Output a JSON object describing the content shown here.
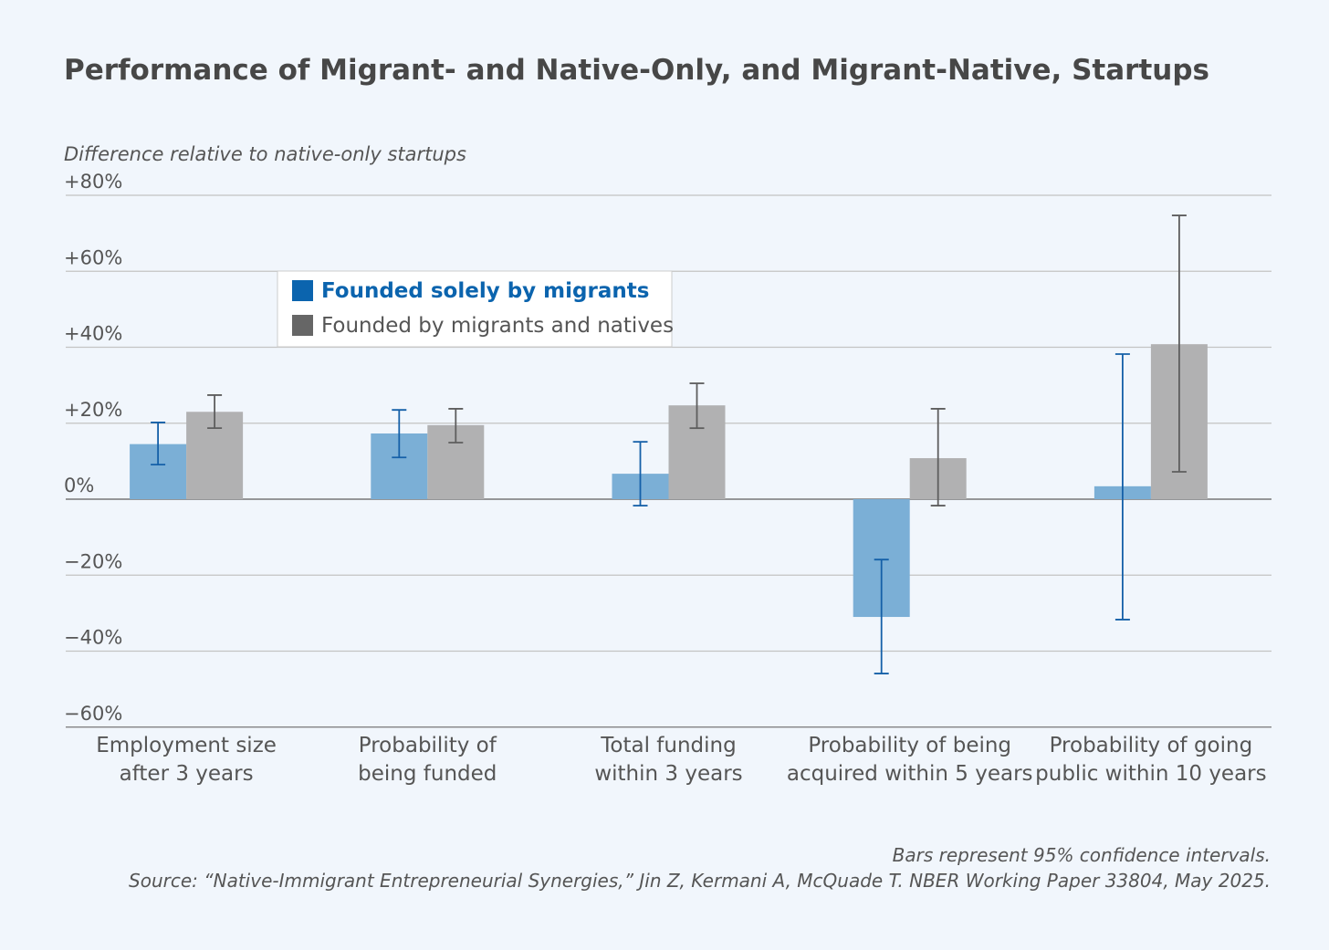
{
  "chart_data": {
    "type": "bar",
    "title": "Performance of Migrant- and Native-Only, and Migrant-Native, Startups",
    "ylabel": "Difference relative to native-only startups",
    "ylim": [
      -60,
      80
    ],
    "yticks": [
      80,
      60,
      40,
      20,
      0,
      -20,
      -40,
      -60
    ],
    "ytick_labels": [
      "+80%",
      "+60%",
      "+40%",
      "+20%",
      "0%",
      "−20%",
      "−40%",
      "−60%"
    ],
    "grid": true,
    "legend_position": "top-left",
    "categories": [
      [
        "Employment size",
        "after 3 years"
      ],
      [
        "Probability of",
        "being funded"
      ],
      [
        "Total funding",
        "within 3 years"
      ],
      [
        "Probability of being",
        "acquired within 5 years"
      ],
      [
        "Probability of going",
        "public within 10 years"
      ]
    ],
    "series": [
      {
        "name": "Founded solely by migrants",
        "color": "#7bafd6",
        "legend_color": "#0b64ae",
        "error_color": "#1560a8",
        "values": [
          14.5,
          17.3,
          6.7,
          -31,
          3.4
        ],
        "ci_low": [
          9.1,
          11,
          -1.7,
          -45.9,
          -31.7
        ],
        "ci_high": [
          20.2,
          23.5,
          15.1,
          -15.9,
          38.2
        ]
      },
      {
        "name": "Founded by migrants and natives",
        "color": "#b1b1b2",
        "legend_color": "#666666",
        "error_color": "#5e5e5e",
        "values": [
          23,
          19.5,
          24.7,
          10.8,
          40.8
        ],
        "ci_low": [
          18.7,
          14.9,
          18.7,
          -1.7,
          7.2
        ],
        "ci_high": [
          27.4,
          23.8,
          30.5,
          23.8,
          74.7
        ]
      }
    ],
    "notes": [
      "Bars represent 95% confidence intervals.",
      "Source: “Native-Immigrant Entrepreneurial Synergies,” Jin Z, Kermani A, McQuade T. NBER Working Paper 33804, May 2025."
    ]
  }
}
